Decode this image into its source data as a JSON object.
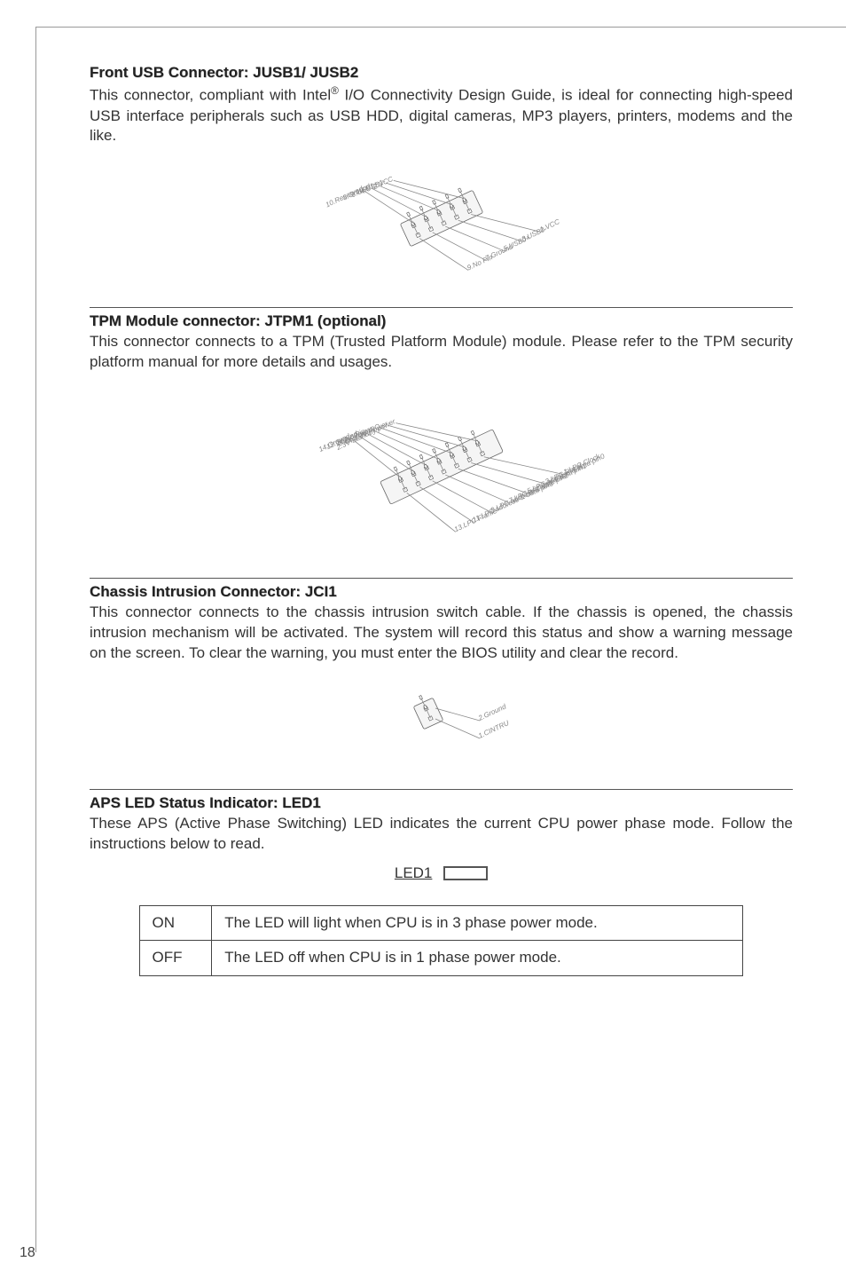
{
  "page_number": "18",
  "sections": {
    "usb": {
      "title": "Front USB Connector: JUSB1/ JUSB2",
      "body_pre": "This connector, compliant with Intel",
      "body_sup": "®",
      "body_post": " I/O Connectivity Design Guide, is ideal for connecting high-speed USB interface peripherals such as USB HDD, digital cameras, MP3 players, printers, modems and the like.",
      "pins_left": [
        "10.Reserved",
        "8.Ground",
        "6.USB1+",
        "4.USB1-",
        "2.VCC"
      ],
      "pins_right": [
        "9.No Pin",
        "7.Ground",
        "5.USB0+",
        "3.USB0-",
        "1.VCC"
      ]
    },
    "tpm": {
      "title": "TPM Module connector: JTPM1 (optional)",
      "body": "This connector connects to a TPM (Trusted Platform Module) module. Please refer to the TPM security platform manual for more details and usages.",
      "pins_left": [
        "14.Ground",
        "12.Ground",
        "10.No Pin",
        "8.5V Power",
        "6.Serial IRQ",
        "4.3.3V Power",
        "2.3V Standby power"
      ],
      "pins_right": [
        "13.LPC Frame",
        "11.LPC address & data pin3",
        "9.LPC address & data pin2",
        "7.LPC address & data pin1",
        "5.LPC address & data pin0",
        "3.LPC Reset",
        "1.LPC Clock"
      ]
    },
    "chassis": {
      "title": "Chassis Intrusion Connector: JCI1",
      "body": "This connector connects to the chassis intrusion switch cable. If the chassis is opened, the chassis intrusion mechanism will be activated. The system will record this status and show a warning message on the screen. To clear the warning, you must enter the BIOS utility and clear the record.",
      "pins_right": [
        "2.Ground",
        "1.CINTRU"
      ]
    },
    "aps": {
      "title": "APS LED Status Indicator: LED1",
      "body": "These APS (Active Phase Switching) LED indicates the current CPU power phase mode. Follow the instructions below to read.",
      "led_label": "LED1",
      "table": [
        {
          "k": "ON",
          "v": "The LED will light when CPU is in 3 phase power mode."
        },
        {
          "k": "OFF",
          "v": "The LED off when CPU is in 1 phase power mode."
        }
      ]
    }
  }
}
